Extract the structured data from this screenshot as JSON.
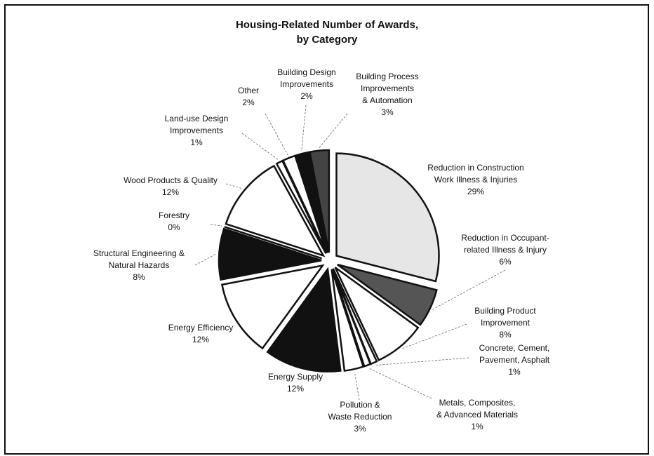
{
  "chart_data": {
    "type": "pie",
    "title": "Housing-Related Number of Awards,\nby Category",
    "categories": [
      "Reduction in Construction\nWork Illness & Injuries",
      "Reduction in Occupant-\nrelated Illness & Injury",
      "Building Product\nImprovement",
      "Concrete, Cement,\nPavement, Asphalt",
      "Metals, Composites,\n& Advanced Materials",
      "Pollution &\nWaste Reduction",
      "Energy Supply",
      "Energy Efficiency",
      "Structural Engineering &\nNatural Hazards",
      "Forestry",
      "Wood Products & Quality",
      "Land-use Design\nImprovements",
      "Other",
      "Building Design\nImprovements",
      "Building Process\nImprovements\n& Automation"
    ],
    "values": [
      29,
      6,
      8,
      1,
      1,
      3,
      12,
      12,
      8,
      0,
      12,
      1,
      2,
      2,
      3
    ],
    "value_labels": [
      "29%",
      "6%",
      "8%",
      "1%",
      "1%",
      "3%",
      "12%",
      "12%",
      "8%",
      "0%",
      "12%",
      "1%",
      "2%",
      "2%",
      "3%"
    ],
    "colors": [
      "#e6e6e6",
      "#555555",
      "#ffffff",
      "#ffffff",
      "#ffffff",
      "#ffffff",
      "#111111",
      "#ffffff",
      "#111111",
      "#ffffff",
      "#ffffff",
      "#ffffff",
      "#ffffff",
      "#111111",
      "#444444"
    ]
  }
}
